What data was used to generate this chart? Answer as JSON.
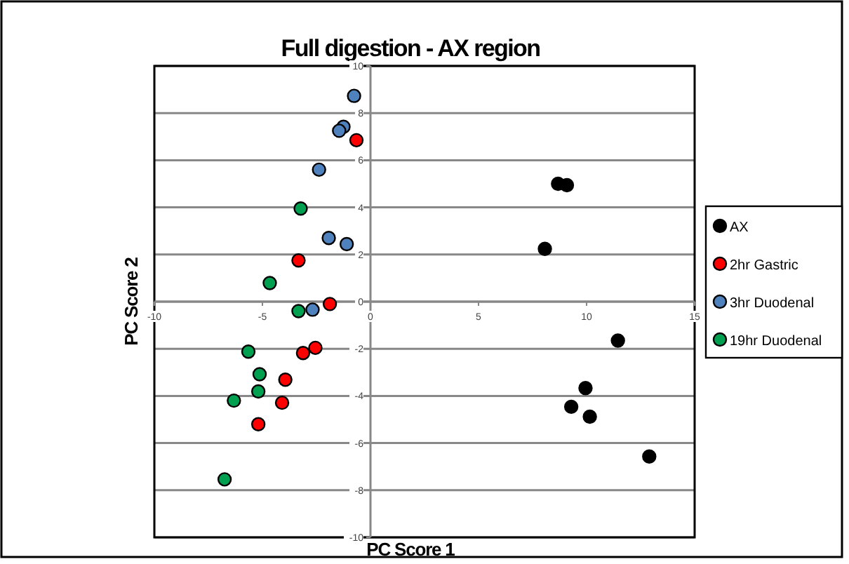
{
  "chart_data": {
    "type": "scatter",
    "title": "Full digestion - AX region",
    "xlabel": "PC Score 1",
    "ylabel": "PC Score 2",
    "xlim": [
      -10,
      15
    ],
    "ylim": [
      -10,
      10
    ],
    "xticks": [
      -10,
      -5,
      0,
      5,
      10,
      15
    ],
    "yticks": [
      -10,
      -8,
      -6,
      -4,
      -2,
      0,
      2,
      4,
      6,
      8,
      10
    ],
    "grid": "y",
    "legend": "right",
    "marker": "circle",
    "series": [
      {
        "name": "AX",
        "color": "#000000",
        "x": [
          8.68,
          9.09,
          8.07,
          11.45,
          9.95,
          9.29,
          10.15,
          12.9
        ],
        "values": [
          5.0,
          4.94,
          2.24,
          -1.65,
          -3.67,
          -4.46,
          -4.88,
          -6.57
        ]
      },
      {
        "name": "2hr Gastric",
        "color": "#ff0000",
        "x": [
          -0.65,
          -3.33,
          -1.88,
          -3.12,
          -2.55,
          -3.94,
          -4.09,
          -5.19
        ],
        "values": [
          6.85,
          1.75,
          -0.1,
          -2.18,
          -1.96,
          -3.31,
          -4.29,
          -5.2
        ]
      },
      {
        "name": "3hr Duodenal",
        "color": "#4f81bd",
        "x": [
          -0.76,
          -1.25,
          -1.45,
          -2.38,
          -1.93,
          -1.1,
          -2.68
        ],
        "values": [
          8.73,
          7.42,
          7.25,
          5.6,
          2.7,
          2.44,
          -0.34
        ]
      },
      {
        "name": "19hr Duodenal",
        "color": "#00a050",
        "x": [
          -3.23,
          -4.66,
          -3.33,
          -5.65,
          -5.13,
          -5.19,
          -6.32,
          -6.75
        ],
        "values": [
          3.95,
          0.79,
          -0.4,
          -2.12,
          -3.08,
          -3.81,
          -4.2,
          -7.54
        ]
      }
    ]
  }
}
